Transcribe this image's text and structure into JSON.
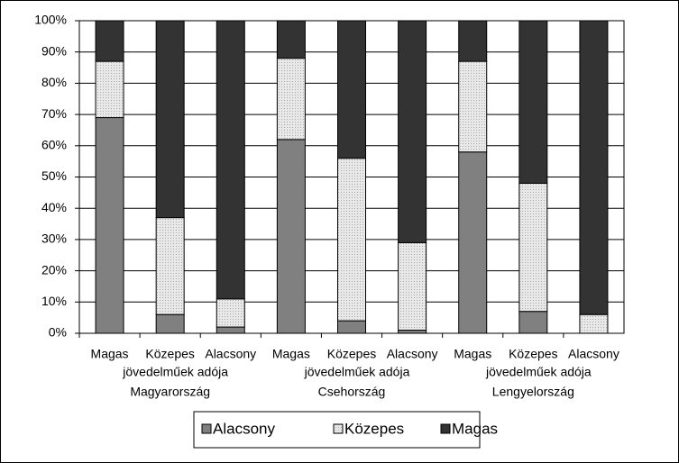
{
  "chart_data": {
    "type": "stacked_bar",
    "categories": [
      "Magas",
      "Közepes",
      "Alacsony",
      "Magas",
      "Közepes",
      "Alacsony",
      "Magas",
      "Közepes",
      "Alacsony"
    ],
    "groups": [
      {
        "sublabel": "jövedelműek adója",
        "name": "Magyarország"
      },
      {
        "sublabel": "jövedelműek adója",
        "name": "Csehország"
      },
      {
        "sublabel": "jövedelműek adója",
        "name": "Lengyelország"
      }
    ],
    "series": [
      {
        "name": "Alacsony",
        "color": "#808080",
        "values": [
          69,
          6,
          2,
          62,
          4,
          1,
          58,
          7,
          0
        ]
      },
      {
        "name": "Közepes",
        "color": "#dcdcdc",
        "values": [
          18,
          31,
          9,
          26,
          52,
          28,
          29,
          41,
          6
        ]
      },
      {
        "name": "Magas",
        "color": "#333333",
        "values": [
          13,
          63,
          89,
          12,
          44,
          71,
          13,
          52,
          94
        ]
      }
    ],
    "ylim": [
      0,
      100
    ],
    "yticks": [
      {
        "value": 0,
        "label": "0%"
      },
      {
        "value": 10,
        "label": "10%"
      },
      {
        "value": 20,
        "label": "20%"
      },
      {
        "value": 30,
        "label": "30%"
      },
      {
        "value": 40,
        "label": "40%"
      },
      {
        "value": 50,
        "label": "50%"
      },
      {
        "value": 60,
        "label": "60%"
      },
      {
        "value": 70,
        "label": "70%"
      },
      {
        "value": 80,
        "label": "80%"
      },
      {
        "value": 90,
        "label": "90%"
      },
      {
        "value": 100,
        "label": "100%"
      }
    ],
    "grid": true,
    "legend": "bottom"
  }
}
